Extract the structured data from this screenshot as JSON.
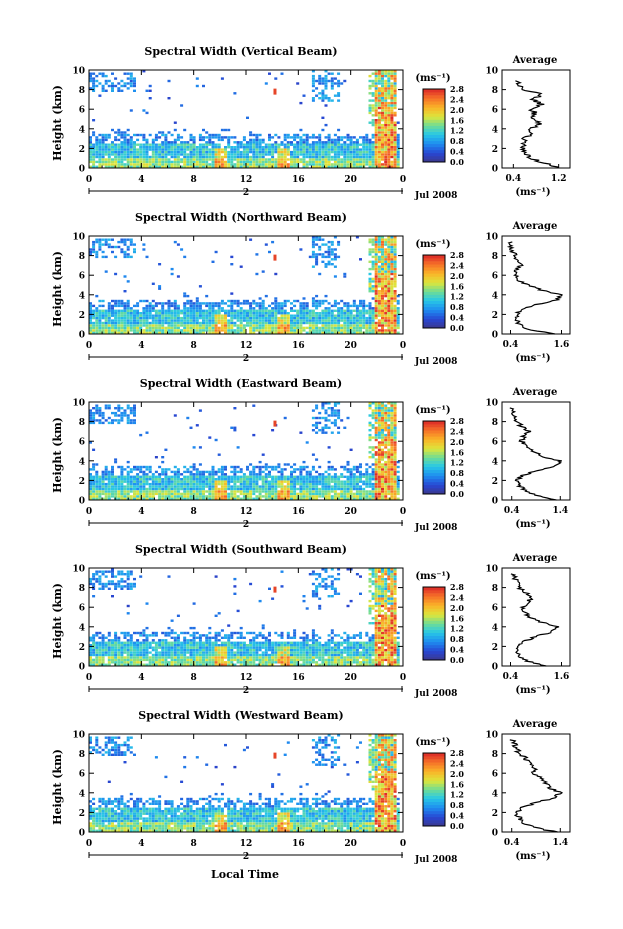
{
  "figure": {
    "xlabel": "Local Time",
    "date_label": "Jul 2008",
    "colorbar_unit": "(ms⁻¹)",
    "colorbar_ticks": [
      "0.0",
      "0.4",
      "0.8",
      "1.2",
      "1.6",
      "2.0",
      "2.4",
      "2.8"
    ],
    "day_marker": "2"
  },
  "chart_data": [
    {
      "type": "heatmap",
      "title": "Spectral Width (Vertical Beam)",
      "ylabel": "Height (km)",
      "xlim": [
        0,
        24
      ],
      "ylim": [
        0,
        10
      ],
      "xticks": [
        "0",
        "4",
        "8",
        "12",
        "16",
        "20",
        "0"
      ],
      "yticks": [
        "0",
        "2",
        "4",
        "6",
        "8",
        "10"
      ],
      "colorbar_range": [
        0,
        2.8
      ],
      "average_profile": {
        "title": "Average",
        "xlabel": "(ms⁻¹)",
        "xticks": [
          "0.4",
          "1.2"
        ],
        "xlim": [
          0.2,
          1.4
        ],
        "ylim": [
          0,
          10
        ],
        "height": [
          0.0,
          0.5,
          1.0,
          1.5,
          2.0,
          2.5,
          3.0,
          3.5,
          4.0,
          4.5,
          5.0,
          5.5,
          6.0,
          6.5,
          7.0,
          7.5,
          8.0,
          8.5,
          9.0
        ],
        "width": [
          1.25,
          0.95,
          0.7,
          0.6,
          0.6,
          0.55,
          0.6,
          0.75,
          0.7,
          0.85,
          0.75,
          0.8,
          0.7,
          0.9,
          0.75,
          0.9,
          0.6,
          0.5,
          0.45
        ]
      }
    },
    {
      "type": "heatmap",
      "title": "Spectral Width (Northward Beam)",
      "ylabel": "Height (km)",
      "xlim": [
        0,
        24
      ],
      "ylim": [
        0,
        10
      ],
      "xticks": [
        "0",
        "4",
        "8",
        "12",
        "16",
        "20",
        "0"
      ],
      "yticks": [
        "0",
        "2",
        "4",
        "6",
        "8",
        "10"
      ],
      "colorbar_range": [
        0,
        2.8
      ],
      "average_profile": {
        "title": "Average",
        "xlabel": "(ms⁻¹)",
        "xticks": [
          "0.4",
          "1.6"
        ],
        "xlim": [
          0.2,
          1.8
        ],
        "ylim": [
          0,
          10
        ],
        "height": [
          0.0,
          0.5,
          1.0,
          1.5,
          2.0,
          2.5,
          3.0,
          3.5,
          4.0,
          4.5,
          5.0,
          5.5,
          6.0,
          6.5,
          7.0,
          7.5,
          8.0,
          8.5,
          9.0,
          9.5
        ],
        "width": [
          1.4,
          0.8,
          0.6,
          0.55,
          0.55,
          0.65,
          1.0,
          1.5,
          1.6,
          1.1,
          0.8,
          0.6,
          0.55,
          0.5,
          0.65,
          0.55,
          0.5,
          0.45,
          0.4,
          0.4
        ]
      }
    },
    {
      "type": "heatmap",
      "title": "Spectral Width (Eastward Beam)",
      "ylabel": "Height (km)",
      "xlim": [
        0,
        24
      ],
      "ylim": [
        0,
        10
      ],
      "xticks": [
        "0",
        "4",
        "8",
        "12",
        "16",
        "20",
        "0"
      ],
      "yticks": [
        "0",
        "2",
        "4",
        "6",
        "8",
        "10"
      ],
      "colorbar_range": [
        0,
        2.8
      ],
      "average_profile": {
        "title": "Average",
        "xlabel": "(ms⁻¹)",
        "xticks": [
          "0.4",
          "1.4"
        ],
        "xlim": [
          0.2,
          1.6
        ],
        "ylim": [
          0,
          10
        ],
        "height": [
          0.0,
          0.5,
          1.0,
          1.5,
          2.0,
          2.5,
          3.0,
          3.5,
          4.0,
          4.5,
          5.0,
          5.5,
          6.0,
          6.5,
          7.0,
          7.5,
          8.0,
          8.5,
          9.0,
          9.5
        ],
        "width": [
          1.3,
          0.9,
          0.65,
          0.55,
          0.5,
          0.6,
          0.95,
          1.3,
          1.4,
          1.0,
          0.8,
          0.7,
          0.6,
          0.65,
          0.75,
          0.6,
          0.5,
          0.45,
          0.4,
          0.4
        ]
      }
    },
    {
      "type": "heatmap",
      "title": "Spectral Width (Southward Beam)",
      "ylabel": "Height (km)",
      "xlim": [
        0,
        24
      ],
      "ylim": [
        0,
        10
      ],
      "xticks": [
        "0",
        "4",
        "8",
        "12",
        "16",
        "20",
        "0"
      ],
      "yticks": [
        "0",
        "2",
        "4",
        "6",
        "8",
        "10"
      ],
      "colorbar_range": [
        0,
        2.8
      ],
      "average_profile": {
        "title": "Average",
        "xlabel": "(ms⁻¹)",
        "xticks": [
          "0.4",
          "1.6"
        ],
        "xlim": [
          0.2,
          1.8
        ],
        "ylim": [
          0,
          10
        ],
        "height": [
          0.0,
          0.5,
          1.0,
          1.5,
          2.0,
          2.5,
          3.0,
          3.5,
          4.0,
          4.5,
          5.0,
          5.5,
          6.0,
          6.5,
          7.0,
          7.5,
          8.0,
          8.5,
          9.0,
          9.5
        ],
        "width": [
          1.2,
          0.8,
          0.6,
          0.55,
          0.55,
          0.7,
          1.0,
          1.4,
          1.5,
          1.1,
          0.85,
          0.75,
          0.7,
          0.8,
          0.9,
          0.75,
          0.6,
          0.55,
          0.5,
          0.45
        ]
      }
    },
    {
      "type": "heatmap",
      "title": "Spectral Width (Westward Beam)",
      "ylabel": "Height (km)",
      "xlim": [
        0,
        24
      ],
      "ylim": [
        0,
        10
      ],
      "xticks": [
        "0",
        "4",
        "8",
        "12",
        "16",
        "20",
        "0"
      ],
      "yticks": [
        "0",
        "2",
        "4",
        "6",
        "8",
        "10"
      ],
      "colorbar_range": [
        0,
        2.8
      ],
      "average_profile": {
        "title": "Average",
        "xlabel": "(ms⁻¹)",
        "xticks": [
          "0.4",
          "1.4"
        ],
        "xlim": [
          0.2,
          1.6
        ],
        "ylim": [
          0,
          10
        ],
        "height": [
          0.0,
          0.5,
          1.0,
          1.5,
          2.0,
          2.5,
          3.0,
          3.5,
          4.0,
          4.5,
          5.0,
          5.5,
          6.0,
          6.5,
          7.0,
          7.5,
          8.0,
          8.5,
          9.0,
          9.5
        ],
        "width": [
          1.3,
          0.85,
          0.6,
          0.55,
          0.5,
          0.6,
          0.9,
          1.3,
          1.4,
          1.2,
          1.1,
          1.0,
          0.85,
          0.9,
          0.75,
          0.7,
          0.55,
          0.5,
          0.45,
          0.4
        ]
      }
    }
  ]
}
